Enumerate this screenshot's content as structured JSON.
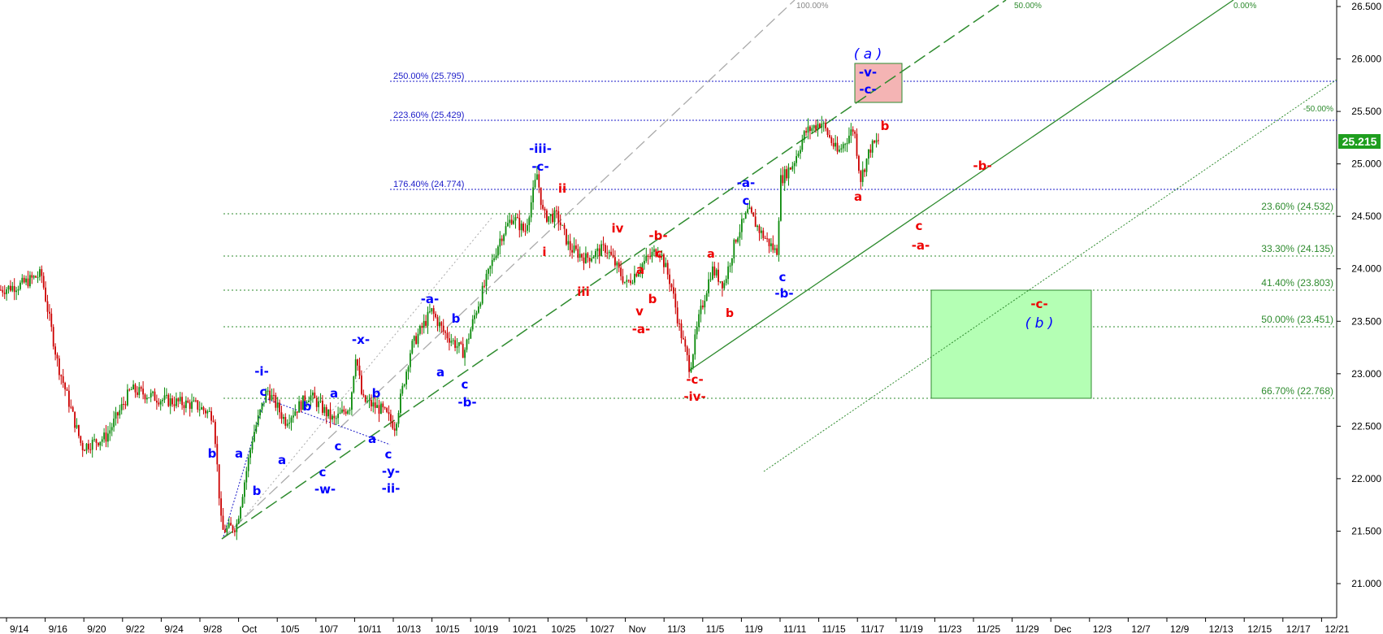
{
  "chart_data": {
    "type": "candlestick",
    "price_axis": {
      "ticks": [
        "21.000",
        "21.500",
        "22.000",
        "22.500",
        "23.000",
        "23.500",
        "24.000",
        "24.500",
        "25.000",
        "25.500",
        "26.000",
        "26.500"
      ],
      "range": [
        20.8,
        26.56
      ]
    },
    "date_axis": {
      "ticks": [
        "9/14",
        "9/16",
        "9/20",
        "9/22",
        "9/24",
        "9/28",
        "Oct",
        "10/5",
        "10/7",
        "10/11",
        "10/13",
        "10/15",
        "10/19",
        "10/21",
        "10/25",
        "10/27",
        "Nov",
        "11/3",
        "11/5",
        "11/9",
        "11/11",
        "11/15",
        "11/17",
        "11/19",
        "11/23",
        "11/25",
        "11/29",
        "Dec",
        "12/3",
        "12/7",
        "12/9",
        "12/13",
        "12/15",
        "12/17",
        "12/21"
      ]
    },
    "last_price": "25.215",
    "fib_retracements": [
      {
        "label": "23.60% (24.532)",
        "value": 24.532
      },
      {
        "label": "33.30% (24.135)",
        "value": 24.135
      },
      {
        "label": "41.40% (23.803)",
        "value": 23.803
      },
      {
        "label": "50.00% (23.451)",
        "value": 23.451
      },
      {
        "label": "66.70% (22.768)",
        "value": 22.768
      }
    ],
    "fib_extensions": [
      {
        "label": "250.00% (25.795)",
        "value": 25.795
      },
      {
        "label": "223.60% (25.429)",
        "value": 25.429
      },
      {
        "label": "176.40% (24.774)",
        "value": 24.774
      }
    ],
    "channel_labels": [
      "100.00%",
      "50.00%",
      "0.00%",
      "-50.00%"
    ],
    "target_zones": [
      {
        "name": "upper",
        "from": 25.6,
        "to": 25.98,
        "color": "#f4b4b4"
      },
      {
        "name": "lower",
        "from": 22.768,
        "to": 23.803,
        "color": "#b4ffb4"
      }
    ],
    "wave_labels": [
      "-i-",
      "a",
      "b",
      "c",
      "-ii-",
      "-y-",
      "c",
      "a",
      "b",
      "c",
      "-w-",
      "c",
      "-x-",
      "a",
      "b",
      "a",
      "b",
      "c",
      "-a-",
      "b",
      "a",
      "c",
      "-b-",
      "-iii-",
      "-c-",
      "ii",
      "i",
      "iii",
      "iv",
      "v",
      "-a-",
      "b",
      "c",
      "-b-",
      "a",
      "-c-",
      "-iv-",
      "a",
      "b",
      "c",
      "-a-",
      "c",
      "-b-",
      "( a )",
      "-v-",
      "-c-",
      "b",
      "a",
      "-b-",
      "c",
      "-a-",
      "-c-",
      "( b )"
    ],
    "series": [
      {
        "name": "",
        "description": "daily/hourly OHLC candles"
      }
    ]
  },
  "colors": {
    "blue_label": "#0000ff",
    "red_label": "#ee0000",
    "fib_green": "#2e8b2e",
    "ext_blue": "#1a1ac8",
    "up_candle": "#0b8a0b",
    "down_candle": "#cc0000",
    "price_badge": "#1e9e1e"
  }
}
